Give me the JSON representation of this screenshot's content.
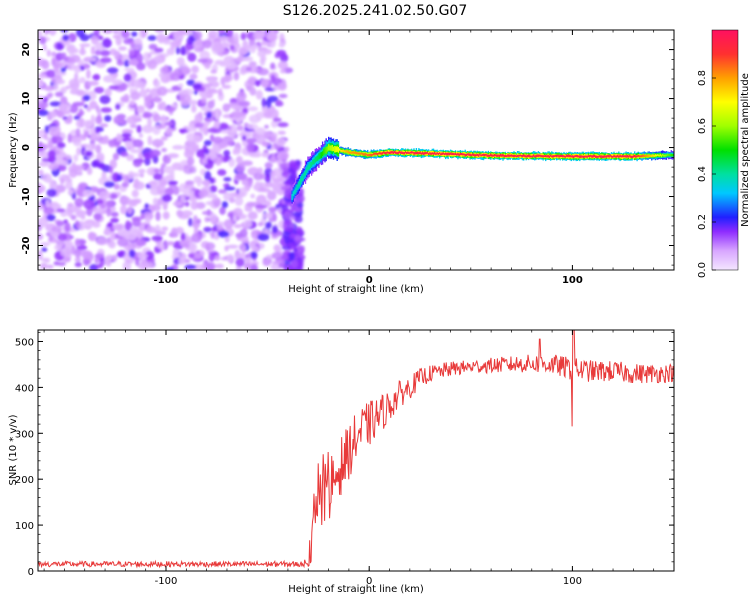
{
  "title": "S126.2025.241.02.50.G07",
  "chart_data": [
    {
      "type": "heatmap",
      "name": "spectrogram",
      "xlabel": "Height of straight line (km)",
      "ylabel": "Frequency (Hz)",
      "xlim": [
        -163,
        150
      ],
      "ylim": [
        -25,
        24
      ],
      "x_ticks": [
        "-100",
        "0",
        "100"
      ],
      "y_ticks": [
        "20",
        "10",
        "0",
        "-10",
        "-20"
      ],
      "colorbar": {
        "label": "Normalized spectral amplitude",
        "ticks": [
          "0.0",
          "0.2",
          "0.4",
          "0.6",
          "0.8"
        ],
        "range": [
          0,
          1
        ]
      },
      "noise_region": {
        "x_start": -163,
        "x_end": -40,
        "level": 0.1
      },
      "signal_track": [
        {
          "x": -38,
          "f": -10,
          "a": 0.35
        },
        {
          "x": -34,
          "f": -7,
          "a": 0.4
        },
        {
          "x": -30,
          "f": -4,
          "a": 0.4
        },
        {
          "x": -25,
          "f": -2,
          "a": 0.45
        },
        {
          "x": -20,
          "f": 0,
          "a": 0.6
        },
        {
          "x": -10,
          "f": -1,
          "a": 0.8
        },
        {
          "x": 0,
          "f": -1.5,
          "a": 0.85
        },
        {
          "x": 10,
          "f": -1,
          "a": 0.95
        },
        {
          "x": 30,
          "f": -1.2,
          "a": 0.95
        },
        {
          "x": 50,
          "f": -1.5,
          "a": 0.95
        },
        {
          "x": 70,
          "f": -1.7,
          "a": 0.95
        },
        {
          "x": 100,
          "f": -1.8,
          "a": 0.95
        },
        {
          "x": 130,
          "f": -1.8,
          "a": 0.95
        },
        {
          "x": 150,
          "f": -1.5,
          "a": 0.5
        }
      ]
    },
    {
      "type": "line",
      "name": "snr",
      "xlabel": "Height of straight line (km)",
      "ylabel": "SNR (10 * v/v)",
      "xlim": [
        -163,
        150
      ],
      "ylim": [
        0,
        525
      ],
      "x_ticks": [
        "-100",
        "0",
        "100"
      ],
      "y_ticks": [
        "500",
        "400",
        "300",
        "200",
        "100",
        "0"
      ],
      "series": [
        {
          "color": "#e83a3a",
          "keypoints": [
            [
              -163,
              15
            ],
            [
              -60,
              15
            ],
            [
              -30,
              15
            ],
            [
              -28,
              60
            ],
            [
              -25,
              140
            ],
            [
              -20,
              180
            ],
            [
              -15,
              220
            ],
            [
              -10,
              260
            ],
            [
              -5,
              300
            ],
            [
              0,
              320
            ],
            [
              5,
              340
            ],
            [
              10,
              360
            ],
            [
              15,
              385
            ],
            [
              20,
              400
            ],
            [
              25,
              420
            ],
            [
              30,
              430
            ],
            [
              40,
              440
            ],
            [
              50,
              445
            ],
            [
              60,
              448
            ],
            [
              70,
              450
            ],
            [
              80,
              452
            ],
            [
              90,
              450
            ],
            [
              100,
              440
            ],
            [
              110,
              435
            ],
            [
              120,
              435
            ],
            [
              130,
              430
            ],
            [
              140,
              430
            ],
            [
              150,
              432
            ]
          ],
          "noise_amplitude": [
            [
              -163,
              6
            ],
            [
              -30,
              6
            ],
            [
              -28,
              60
            ],
            [
              -20,
              70
            ],
            [
              -10,
              60
            ],
            [
              0,
              50
            ],
            [
              10,
              35
            ],
            [
              20,
              25
            ],
            [
              30,
              18
            ],
            [
              50,
              15
            ],
            [
              80,
              20
            ],
            [
              100,
              25
            ],
            [
              150,
              20
            ]
          ]
        }
      ]
    }
  ]
}
